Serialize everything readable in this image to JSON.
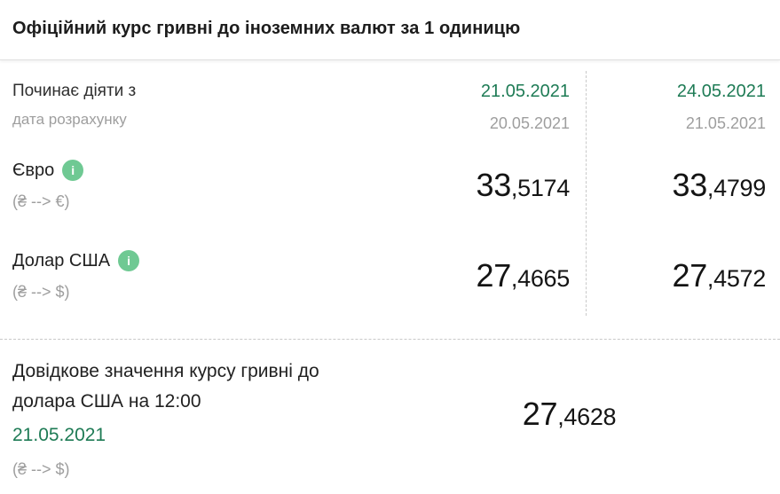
{
  "title": "Офіційний курс гривні до іноземних валют за 1 одиницю",
  "header": {
    "label": "Починає діяти з",
    "sublabel": "дата розрахунку",
    "columns": [
      {
        "effective_date": "21.05.2021",
        "calculation_date": "20.05.2021"
      },
      {
        "effective_date": "24.05.2021",
        "calculation_date": "21.05.2021"
      }
    ]
  },
  "rates": [
    {
      "currency": "Євро",
      "pair": "(₴ --> €)",
      "values": [
        {
          "int": "33",
          "frac": ",5174"
        },
        {
          "int": "33",
          "frac": ",4799"
        }
      ]
    },
    {
      "currency": "Долар США",
      "pair": "(₴ --> $)",
      "values": [
        {
          "int": "27",
          "frac": ",4665"
        },
        {
          "int": "27",
          "frac": ",4572"
        }
      ]
    }
  ],
  "reference": {
    "label": "Довідкове значення курсу гривні до долара США на 12:00",
    "date": "21.05.2021",
    "pair": "(₴ --> $)",
    "value": {
      "int": "27",
      "frac": ",4628"
    }
  },
  "icons": {
    "info": "i"
  },
  "colors": {
    "effective_date_green": "#1e7b55",
    "info_icon_green": "#6fc993",
    "muted_gray": "#9e9e9e"
  }
}
